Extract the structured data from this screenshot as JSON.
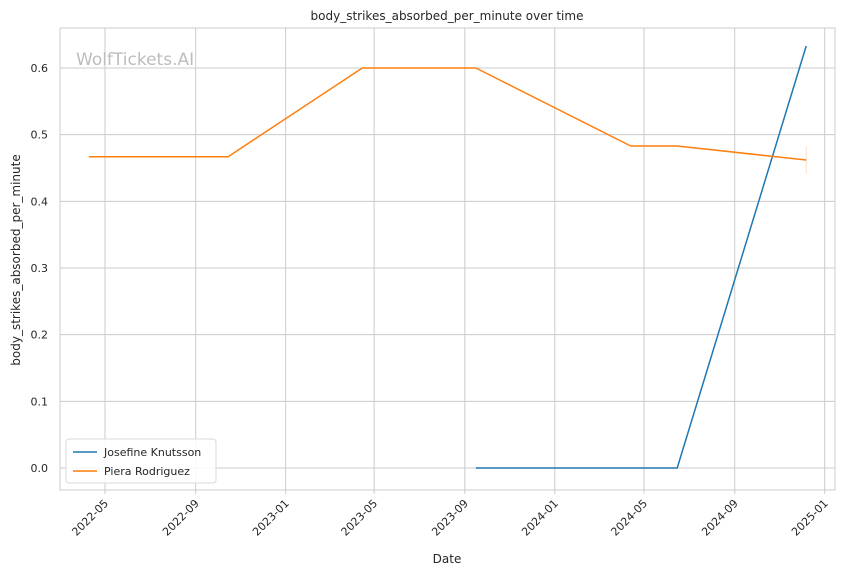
{
  "watermark": "WolfTickets.AI",
  "chart_data": {
    "type": "line",
    "title": "body_strikes_absorbed_per_minute over time",
    "xlabel": "Date",
    "ylabel": "body_strikes_absorbed_per_minute",
    "x_ticks": [
      "2022-05",
      "2022-09",
      "2023-01",
      "2023-05",
      "2023-09",
      "2024-01",
      "2024-05",
      "2024-09",
      "2025-01"
    ],
    "y_ticks": [
      "0.0",
      "0.1",
      "0.2",
      "0.3",
      "0.4",
      "0.5",
      "0.6"
    ],
    "xlim": [
      "2022-03-01",
      "2025-01-15"
    ],
    "ylim": [
      -0.033,
      0.66
    ],
    "grid": true,
    "legend_position": "lower-left",
    "series": [
      {
        "name": "Josefine Knutsson",
        "color": "#1f77b4",
        "points": [
          {
            "x": "2023-09-16",
            "y": 0.0
          },
          {
            "x": "2024-06-15",
            "y": 0.0
          },
          {
            "x": "2024-12-07",
            "y": 0.633
          }
        ]
      },
      {
        "name": "Piera Rodriguez",
        "color": "#ff7f0e",
        "points": [
          {
            "x": "2022-04-09",
            "y": 0.467
          },
          {
            "x": "2022-10-15",
            "y": 0.467
          },
          {
            "x": "2023-04-15",
            "y": 0.6
          },
          {
            "x": "2023-09-16",
            "y": 0.6
          },
          {
            "x": "2024-04-13",
            "y": 0.483
          },
          {
            "x": "2024-06-15",
            "y": 0.483
          },
          {
            "x": "2024-12-07",
            "y": 0.462
          }
        ]
      }
    ]
  }
}
